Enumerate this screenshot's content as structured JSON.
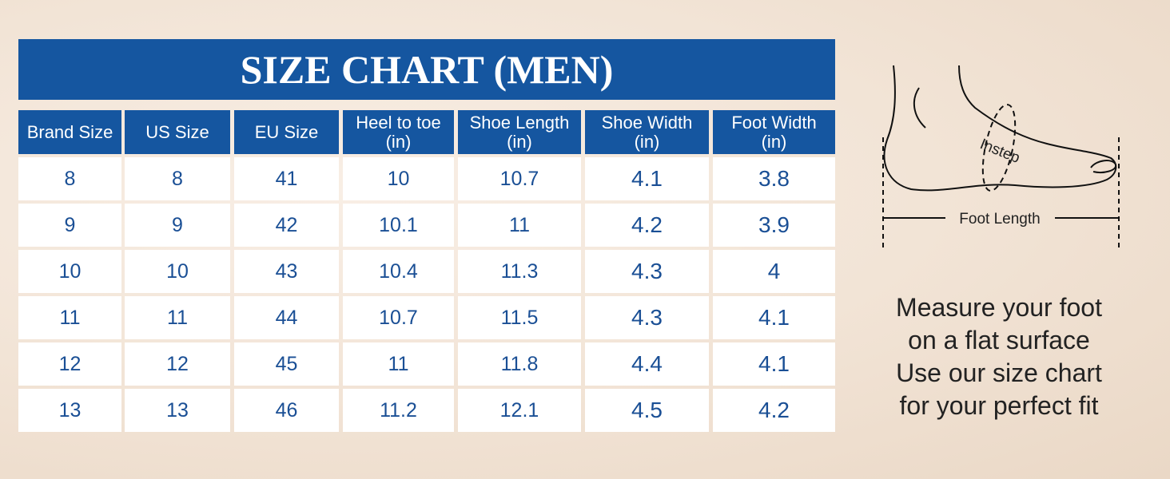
{
  "title": "SIZE CHART (MEN)",
  "table": {
    "header": [
      [
        "Brand Size"
      ],
      [
        "US Size"
      ],
      [
        "EU Size"
      ],
      [
        "Heel to toe",
        "(in)"
      ],
      [
        "Shoe Length",
        "(in)"
      ],
      [
        "Shoe Width",
        "(in)"
      ],
      [
        "Foot Width",
        "(in)"
      ]
    ],
    "rows": [
      [
        "8",
        "8",
        "41",
        "10",
        "10.7",
        "4.1",
        "3.8"
      ],
      [
        "9",
        "9",
        "42",
        "10.1",
        "11",
        "4.2",
        "3.9"
      ],
      [
        "10",
        "10",
        "43",
        "10.4",
        "11.3",
        "4.3",
        "4"
      ],
      [
        "11",
        "11",
        "44",
        "10.7",
        "11.5",
        "4.3",
        "4.1"
      ],
      [
        "12",
        "12",
        "45",
        "11",
        "11.8",
        "4.4",
        "4.1"
      ],
      [
        "13",
        "13",
        "46",
        "11.2",
        "12.1",
        "4.5",
        "4.2"
      ]
    ]
  },
  "diagram": {
    "instep": "Instep",
    "foot_length": "Foot Length"
  },
  "instructions": [
    "Measure your foot",
    "on a flat surface",
    "Use our size chart",
    "for your perfect fit"
  ]
}
